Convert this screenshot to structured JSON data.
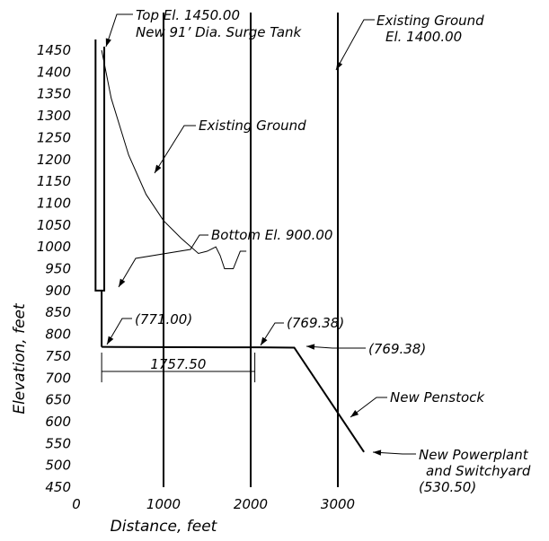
{
  "chart_data": {
    "type": "line",
    "xlabel": "Distance, feet",
    "ylabel": "Elevation, feet",
    "xlim": [
      0,
      3000
    ],
    "ylim": [
      450,
      1450
    ],
    "x_ticks": [
      "0",
      "1000",
      "2000",
      "3000"
    ],
    "y_ticks": [
      "1450",
      "1400",
      "1350",
      "1300",
      "1250",
      "1200",
      "1150",
      "1100",
      "1050",
      "1000",
      "950",
      "900",
      "850",
      "800",
      "750",
      "700",
      "650",
      "600",
      "550",
      "500",
      "450"
    ],
    "grid": "vertical lines at 1000, 2000, 3000",
    "series": [
      {
        "key": "existing_ground",
        "points": [
          [
            290,
            1450
          ],
          [
            400,
            1340
          ],
          [
            600,
            1210
          ],
          [
            800,
            1120
          ],
          [
            1000,
            1060
          ],
          [
            1200,
            1020
          ],
          [
            1400,
            985
          ],
          [
            1500,
            990
          ],
          [
            1600,
            1000
          ],
          [
            1650,
            980
          ],
          [
            1700,
            950
          ],
          [
            1800,
            950
          ],
          [
            1880,
            990
          ],
          [
            1950,
            990
          ]
        ]
      },
      {
        "key": "penstock",
        "points": [
          [
            290,
            771
          ],
          [
            2100,
            770
          ],
          [
            2500,
            769.38
          ],
          [
            3300,
            530.5
          ]
        ]
      },
      {
        "key": "surge_tank_shaft",
        "points": [
          [
            290,
            900
          ],
          [
            290,
            771
          ]
        ]
      }
    ],
    "surge_tank": {
      "x_left": 220,
      "x_right": 320,
      "top_el": 1450,
      "bottom_el": 900
    },
    "dimension": {
      "x_start": 290,
      "x_end": 2047.5,
      "y": 715,
      "label": "1757.50"
    },
    "annotations": [
      {
        "key": "tank_top",
        "lines": [
          "Top El. 1450.00",
          "New 91’ Dia. Surge Tank"
        ]
      },
      {
        "key": "existing_ground_el",
        "lines": [
          "Existing Ground",
          "El. 1400.00"
        ]
      },
      {
        "key": "existing_ground",
        "lines": [
          "Existing Ground"
        ]
      },
      {
        "key": "tank_bottom",
        "lines": [
          "Bottom El. 900.00"
        ]
      },
      {
        "key": "el_771",
        "lines": [
          "(771.00)"
        ]
      },
      {
        "key": "el_769_a",
        "lines": [
          "(769.38)"
        ]
      },
      {
        "key": "el_769_b",
        "lines": [
          "(769.38)"
        ]
      },
      {
        "key": "penstock",
        "lines": [
          "New Penstock"
        ]
      },
      {
        "key": "powerplant",
        "lines": [
          "New Powerplant",
          "and Switchyard",
          "(530.50)"
        ]
      }
    ]
  }
}
